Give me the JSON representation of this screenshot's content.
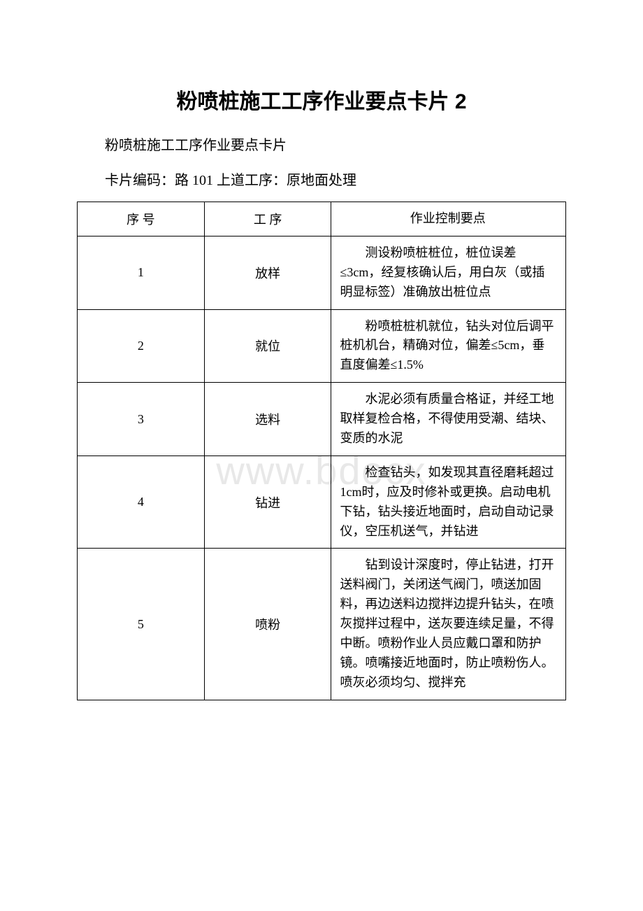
{
  "watermark": "www.bdocx",
  "title": "粉喷桩施工工序作业要点卡片 2",
  "subtitle": "粉喷桩施工工序作业要点卡片",
  "card_info": "卡片编码：路 101 上道工序：原地面处理",
  "table": {
    "headers": {
      "seq": "序 号",
      "process": "工 序",
      "detail": "作业控制要点"
    },
    "rows": [
      {
        "seq": "1",
        "process": "放样",
        "detail": "　　测设粉喷桩桩位，桩位误差≤3cm，经复核确认后，用白灰（或插明显标签）准确放出桩位点"
      },
      {
        "seq": "2",
        "process": "就位",
        "detail": "　　粉喷桩桩机就位，钻头对位后调平桩机机台，精确对位，偏差≤5cm，垂直度偏差≤1.5%"
      },
      {
        "seq": "3",
        "process": "选料",
        "detail": "　　水泥必须有质量合格证，并经工地取样复检合格，不得使用受潮、结块、变质的水泥"
      },
      {
        "seq": "4",
        "process": "钻进",
        "detail": "　　检查钻头，如发现其直径磨耗超过 1cm时，应及时修补或更换。启动电机下钻，钻头接近地面时，启动自动记录仪，空压机送气，并钻进"
      },
      {
        "seq": "5",
        "process": "喷粉",
        "detail": "　　钻到设计深度时，停止钻进，打开送料阀门，关闭送气阀门，喷送加固料，再边送料边搅拌边提升钻头，在喷灰搅拌过程中，送灰要连续足量，不得中断。喷粉作业人员应戴口罩和防护镜。喷嘴接近地面时，防止喷粉伤人。喷灰必须均匀、搅拌充"
      }
    ]
  }
}
